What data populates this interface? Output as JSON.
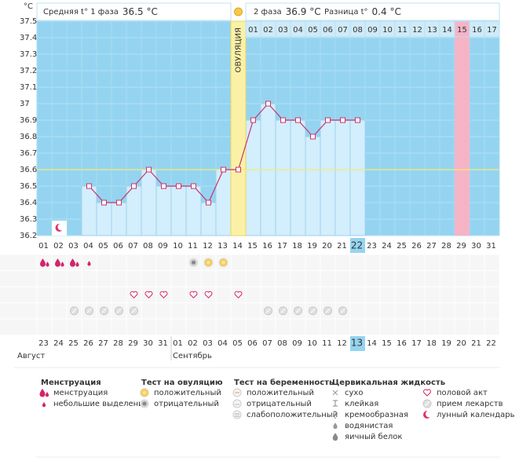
{
  "header": {
    "phase1_label": "Средняя t° 1 фаза",
    "phase1_value": "36.5 °C",
    "phase2_label": "2 фаза",
    "phase2_value": "36.9 °C",
    "diff_label": "Разница t°",
    "diff_value": "0.4 °C"
  },
  "chart_data": {
    "type": "line",
    "y_label": "°C",
    "categories": [
      "01",
      "02",
      "03",
      "04",
      "05",
      "06",
      "07",
      "08",
      "09",
      "10",
      "11",
      "12",
      "13",
      "14",
      "15",
      "16",
      "17",
      "18",
      "19",
      "20",
      "21",
      "22",
      "23",
      "24",
      "25",
      "26",
      "27",
      "28",
      "29",
      "30",
      "31"
    ],
    "values": [
      null,
      null,
      null,
      36.5,
      36.4,
      36.4,
      36.5,
      36.6,
      36.5,
      36.5,
      36.5,
      36.4,
      36.6,
      36.6,
      36.9,
      37.0,
      36.9,
      36.9,
      36.8,
      36.9,
      36.9,
      36.9,
      null,
      null,
      null,
      null,
      null,
      null,
      null,
      null,
      null
    ],
    "color": "#c8336e",
    "ylim": [
      36.2,
      37.5
    ],
    "yticks": [
      36.2,
      36.3,
      36.4,
      36.5,
      36.6,
      36.7,
      36.8,
      36.9,
      37,
      37.1,
      37.2,
      37.3,
      37.4,
      37.5
    ],
    "coverline": 36.6,
    "ovulation_day": "14",
    "ovulation_label": "ОВУЛЯЦИЯ",
    "phase2_days": [
      "01",
      "02",
      "03",
      "04",
      "05",
      "06",
      "07",
      "08",
      "09",
      "10",
      "11",
      "12",
      "13",
      "14",
      "15",
      "16",
      "17"
    ],
    "expected_period_day": "29",
    "today": "22"
  },
  "symbols": {
    "menstruation": [
      "01",
      "02",
      "03"
    ],
    "spotting": [
      "04"
    ],
    "ovulation_negative": [
      "11"
    ],
    "ovulation_positive": [
      "12",
      "13"
    ],
    "intercourse": [
      "07",
      "08",
      "09",
      "11",
      "12",
      "14"
    ],
    "medication": [
      "03",
      "04",
      "05",
      "06",
      "07",
      "16",
      "17",
      "18",
      "19",
      "20",
      "21"
    ],
    "lunar": [
      "02"
    ]
  },
  "dates": [
    {
      "label": "23",
      "weekend": false
    },
    {
      "label": "24",
      "weekend": true
    },
    {
      "label": "25",
      "weekend": true
    },
    {
      "label": "26",
      "weekend": false
    },
    {
      "label": "27",
      "weekend": false
    },
    {
      "label": "28",
      "weekend": false
    },
    {
      "label": "29",
      "weekend": false
    },
    {
      "label": "30",
      "weekend": false
    },
    {
      "label": "31",
      "weekend": true
    },
    {
      "label": "01",
      "weekend": true
    },
    {
      "label": "02",
      "weekend": false
    },
    {
      "label": "03",
      "weekend": false
    },
    {
      "label": "04",
      "weekend": false
    },
    {
      "label": "05",
      "weekend": false
    },
    {
      "label": "06",
      "weekend": false
    },
    {
      "label": "07",
      "weekend": true
    },
    {
      "label": "08",
      "weekend": true
    },
    {
      "label": "09",
      "weekend": false
    },
    {
      "label": "10",
      "weekend": false
    },
    {
      "label": "11",
      "weekend": false
    },
    {
      "label": "12",
      "weekend": false
    },
    {
      "label": "13",
      "weekend": false
    },
    {
      "label": "14",
      "weekend": true
    },
    {
      "label": "15",
      "weekend": true
    },
    {
      "label": "16",
      "weekend": false
    },
    {
      "label": "17",
      "weekend": false
    },
    {
      "label": "18",
      "weekend": false
    },
    {
      "label": "19",
      "weekend": false
    },
    {
      "label": "20",
      "weekend": false
    },
    {
      "label": "21",
      "weekend": true
    },
    {
      "label": "22",
      "weekend": true
    }
  ],
  "months": [
    "Август",
    "Сентябрь"
  ],
  "legend": [
    {
      "title": "Менструация",
      "items": [
        {
          "icon": "menstruation",
          "label": "менструация"
        },
        {
          "icon": "spotting",
          "label": "небольшие выделения"
        }
      ]
    },
    {
      "title": "Тест на овуляцию",
      "items": [
        {
          "icon": "ovulation_positive",
          "label": "положительный"
        },
        {
          "icon": "ovulation_negative",
          "label": "отрицательный"
        }
      ]
    },
    {
      "title": "Тест на беременность",
      "items": [
        {
          "icon": "pregnancy_positive",
          "label": "положительный"
        },
        {
          "icon": "pregnancy_negative",
          "label": "отрицательный"
        },
        {
          "icon": "pregnancy_weak",
          "label": "слабоположительный"
        }
      ]
    },
    {
      "title": "Цервикальная жидкость",
      "items": [
        {
          "icon": "dry",
          "label": "сухо"
        },
        {
          "icon": "sticky",
          "label": "клейкая"
        },
        {
          "icon": "creamy",
          "label": "кремообразная"
        },
        {
          "icon": "watery",
          "label": "водянистая"
        },
        {
          "icon": "eggwhite",
          "label": "яичный белок"
        }
      ]
    },
    {
      "items": [
        {
          "icon": "intercourse",
          "label": "половой акт"
        },
        {
          "icon": "medication",
          "label": "прием лекарств"
        },
        {
          "icon": "lunar",
          "label": "лунный календарь"
        }
      ]
    }
  ]
}
